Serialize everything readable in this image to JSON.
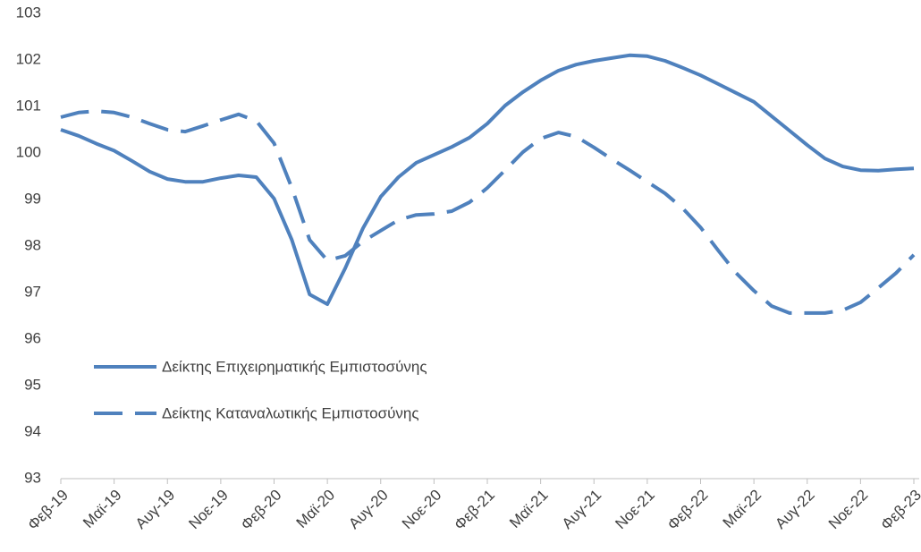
{
  "chart_data": {
    "type": "line",
    "categories": [
      "Φεβ-19",
      null,
      null,
      "Μαϊ-19",
      null,
      null,
      "Αυγ-19",
      null,
      null,
      "Νοε-19",
      null,
      null,
      "Φεβ-20",
      null,
      null,
      "Μαϊ-20",
      null,
      null,
      "Αυγ-20",
      null,
      null,
      "Νοε-20",
      null,
      null,
      "Φεβ-21",
      null,
      null,
      "Μαϊ-21",
      null,
      null,
      "Αυγ-21",
      null,
      null,
      "Νοε-21",
      null,
      null,
      "Φεβ-22",
      null,
      null,
      "Μαϊ-22",
      null,
      null,
      "Αυγ-22",
      null,
      null,
      "Νοε-22",
      null,
      null,
      "Φεβ-23"
    ],
    "series": [
      {
        "name": "Δείκτης Επιχειρηματικής Εμπιστοσύνης",
        "color": "#4f81bd",
        "dash": false,
        "values": [
          100.5,
          100.37,
          100.2,
          100.05,
          99.83,
          99.6,
          99.44,
          99.38,
          99.38,
          99.46,
          99.52,
          99.48,
          99.02,
          98.13,
          96.96,
          96.75,
          97.52,
          98.38,
          99.06,
          99.48,
          99.79,
          99.96,
          100.13,
          100.33,
          100.63,
          101.02,
          101.31,
          101.56,
          101.77,
          101.9,
          101.98,
          102.04,
          102.1,
          102.08,
          101.98,
          101.83,
          101.67,
          101.48,
          101.29,
          101.1,
          100.79,
          100.48,
          100.17,
          99.88,
          99.71,
          99.63,
          99.62,
          99.65,
          99.67
        ]
      },
      {
        "name": "Δείκτης Καταναλωτικής Εμπιστοσύνης",
        "color": "#4f81bd",
        "dash": true,
        "values": [
          100.77,
          100.87,
          100.9,
          100.87,
          100.77,
          100.63,
          100.5,
          100.46,
          100.58,
          100.71,
          100.83,
          100.69,
          100.21,
          99.25,
          98.13,
          97.69,
          97.79,
          98.1,
          98.33,
          98.56,
          98.67,
          98.69,
          98.75,
          98.94,
          99.25,
          99.63,
          100.02,
          100.31,
          100.44,
          100.35,
          100.12,
          99.87,
          99.63,
          99.38,
          99.13,
          98.81,
          98.4,
          97.9,
          97.42,
          97.04,
          96.71,
          96.56,
          96.56,
          96.56,
          96.62,
          96.79,
          97.1,
          97.42,
          97.81
        ]
      }
    ],
    "ylim": [
      93,
      103
    ],
    "yticks": [
      93,
      94,
      95,
      96,
      97,
      98,
      99,
      100,
      101,
      102,
      103
    ],
    "grid": false,
    "legend": "lower-left"
  }
}
